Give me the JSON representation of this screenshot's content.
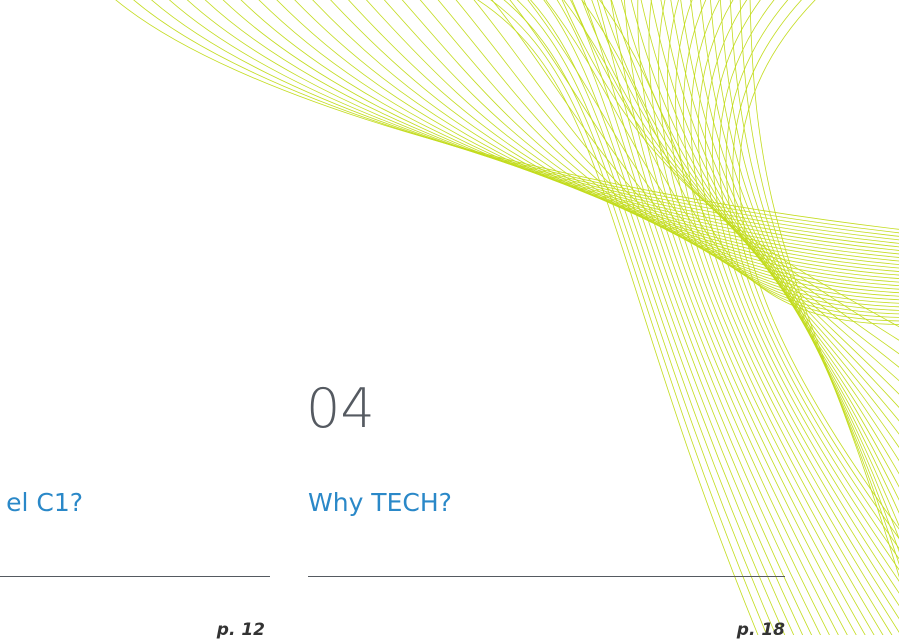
{
  "sections": [
    {
      "title": "el C1?",
      "page": "p. 12"
    },
    {
      "number": "04",
      "title": "Why TECH?",
      "page": "p. 18"
    }
  ]
}
